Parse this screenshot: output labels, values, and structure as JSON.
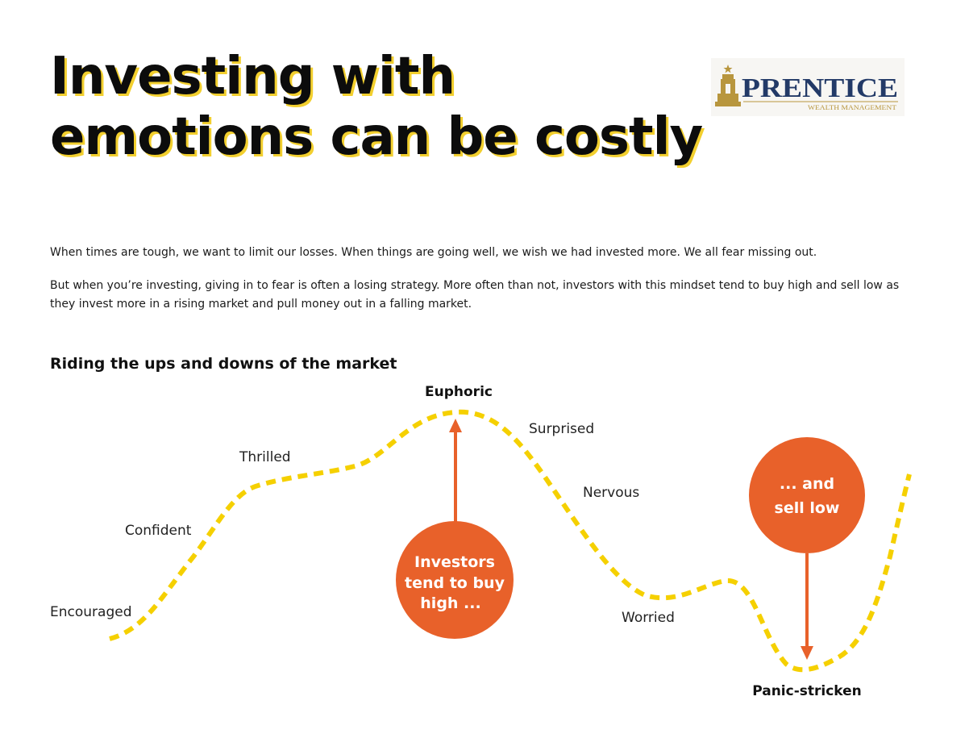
{
  "header": {
    "title_line1": "Investing with",
    "title_line2": "emotions can be costly"
  },
  "logo": {
    "name": "PRENTICE",
    "tagline": "WEALTH MANAGEMENT",
    "color_gold": "#b8963e",
    "color_navy": "#233a67"
  },
  "intro": {
    "paragraph1": "When times are tough, we want to limit our losses. When things are going well, we wish we had invested more. We all fear missing out.",
    "paragraph2": "But when you’re investing, giving in to fear is often a losing strategy. More often than not, investors with this mindset tend to buy high and sell low as they invest more in a rising market and pull money out in a falling market."
  },
  "diagram": {
    "title": "Riding the ups and downs of the market",
    "curve_color": "#f5d000",
    "accent_color": "#e8612a",
    "stages": [
      {
        "label": "Encouraged"
      },
      {
        "label": "Confident"
      },
      {
        "label": "Thrilled"
      },
      {
        "label": "Euphoric"
      },
      {
        "label": "Surprised"
      },
      {
        "label": "Nervous"
      },
      {
        "label": "Worried"
      },
      {
        "label": "Panic-stricken"
      }
    ],
    "buy_callout": {
      "line1": "Investors",
      "line2": "tend to buy",
      "line3": "high ..."
    },
    "sell_callout": {
      "line1": "... and",
      "line2": "sell low"
    }
  }
}
